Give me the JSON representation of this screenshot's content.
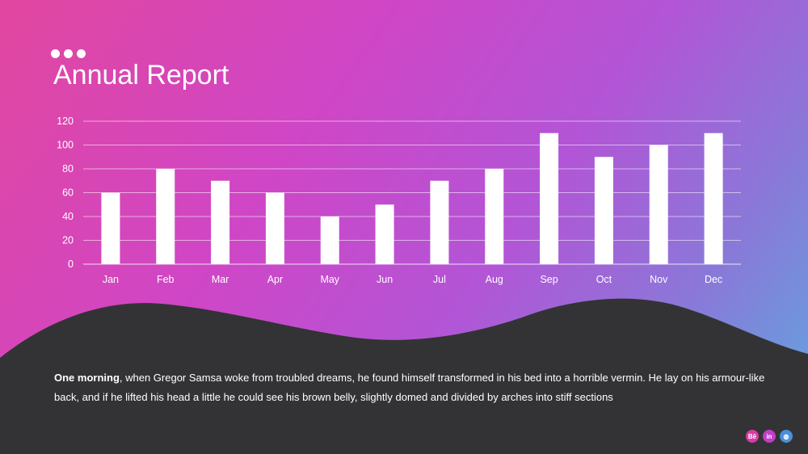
{
  "header": {
    "title": "Annual Report"
  },
  "body": {
    "lead": "One morning",
    "text": ", when Gregor Samsa woke from troubled dreams, he found himself transformed in his bed into a horrible vermin. He lay on his armour-like back, and if he lifted his head a little he could see his brown belly, slightly domed and divided by arches into stiff sections"
  },
  "social": [
    {
      "icon": "behance-icon",
      "glyph": "Bē",
      "color": "#d93aa8"
    },
    {
      "icon": "linkedin-icon",
      "glyph": "in",
      "color": "#c03fc8"
    },
    {
      "icon": "dribbble-icon",
      "glyph": "◍",
      "color": "#4a8fd6"
    }
  ],
  "chart_data": {
    "type": "bar",
    "categories": [
      "Jan",
      "Feb",
      "Mar",
      "Apr",
      "May",
      "Jun",
      "Jul",
      "Aug",
      "Sep",
      "Oct",
      "Nov",
      "Dec"
    ],
    "values": [
      60,
      80,
      70,
      60,
      40,
      50,
      70,
      80,
      110,
      90,
      100,
      110
    ],
    "yticks": [
      0,
      20,
      40,
      60,
      80,
      100,
      120
    ],
    "ylim": [
      0,
      120
    ],
    "grid": true,
    "bar_color": "#ffffff"
  }
}
